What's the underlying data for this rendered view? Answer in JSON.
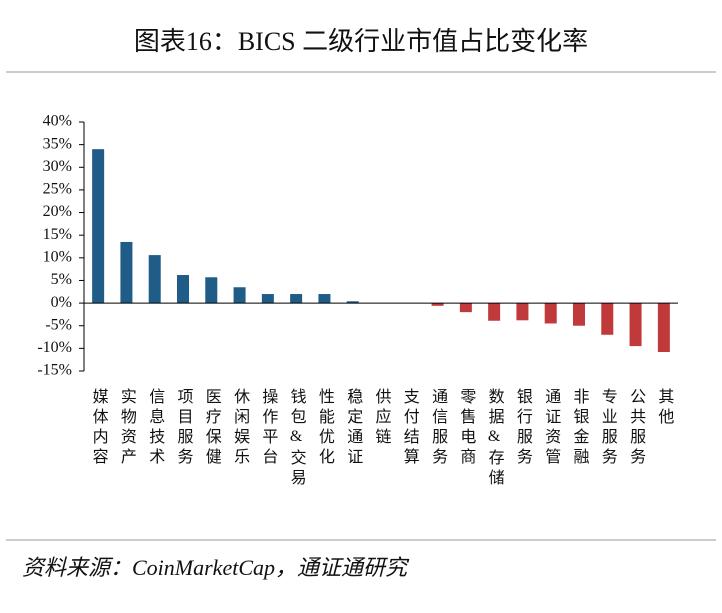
{
  "chart_data": {
    "type": "bar",
    "title": "图表16：BICS 二级行业市值占比变化率",
    "source": "资料来源：CoinMarketCap，通证通研究",
    "categories": [
      "媒体内容",
      "实物资产",
      "信息技术",
      "项目服务",
      "医疗保健",
      "休闲娱乐",
      "操作平台",
      "钱包&交易",
      "性能优化",
      "稳定通证",
      "供应链",
      "支付结算",
      "通信服务",
      "零售电商",
      "数据&存储",
      "银行服务",
      "通证资管",
      "非银金融",
      "专业服务",
      "公共服务",
      "其他"
    ],
    "values": [
      34.0,
      13.5,
      10.6,
      6.2,
      5.7,
      3.5,
      2.0,
      2.0,
      2.0,
      0.4,
      0,
      0,
      -0.6,
      -2.0,
      -3.9,
      -3.8,
      -4.5,
      -5.0,
      -7.0,
      -9.5,
      -10.8
    ],
    "color": "#1f5c87",
    "negative_color": "#c0393b",
    "ylim": [
      -15,
      40
    ],
    "yticks": [
      {
        "value": -15,
        "label": "-15%"
      },
      {
        "value": -10,
        "label": "-10%"
      },
      {
        "value": -5,
        "label": "-5%"
      },
      {
        "value": 0,
        "label": "0%"
      },
      {
        "value": 5,
        "label": "5%"
      },
      {
        "value": 10,
        "label": "10%"
      },
      {
        "value": 15,
        "label": "15%"
      },
      {
        "value": 20,
        "label": "20%"
      },
      {
        "value": 25,
        "label": "25%"
      },
      {
        "value": 30,
        "label": "30%"
      },
      {
        "value": 35,
        "label": "35%"
      },
      {
        "value": 40,
        "label": "40%"
      }
    ],
    "grid": false
  }
}
